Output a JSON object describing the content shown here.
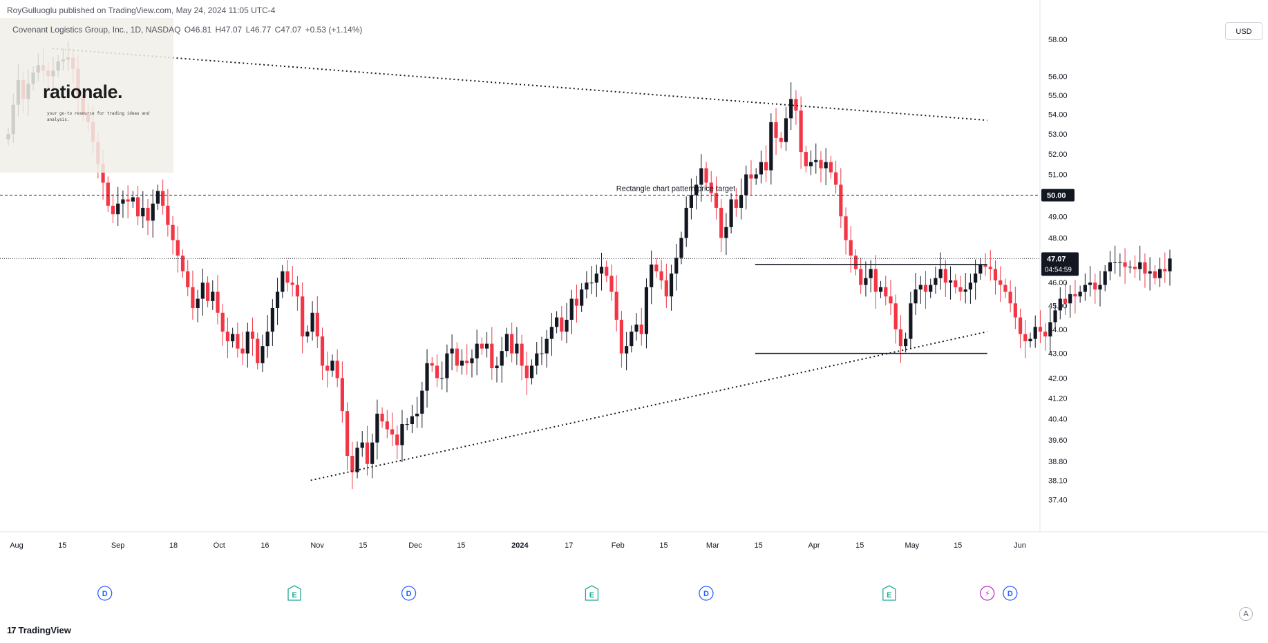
{
  "header": {
    "publisher": "RoyGulluoglu published on TradingView.com, May 24, 2024 11:05 UTC-4",
    "symbol": "Covenant Logistics Group, Inc., 1D, NASDAQ",
    "open": "O46.81",
    "high": "H47.07",
    "low": "L46.77",
    "close": "C47.07",
    "change": "+0.53 (+1.14%)"
  },
  "watermark": {
    "title": "rationale.",
    "tagline": "your go-to resource for trading ideas and analysis."
  },
  "currency_label": "USD",
  "price_badge": {
    "price": "47.07",
    "countdown": "04:54:59"
  },
  "target_badge": "50.00",
  "footer": {
    "brand": "TradingView",
    "settings_icon": "settings-icon"
  },
  "colors": {
    "up": "#131722",
    "down": "#f23645",
    "grid": "#f0f3fa"
  },
  "chart_data": {
    "type": "candlestick",
    "yscale": "log",
    "ylim": [
      37.0,
      59.2
    ],
    "y_ticks": [
      58.0,
      56.0,
      55.0,
      54.0,
      53.0,
      52.0,
      51.0,
      50.0,
      49.0,
      48.0,
      47.0,
      46.0,
      45.0,
      44.0,
      43.0,
      42.0,
      41.2,
      40.4,
      39.6,
      38.8,
      38.1,
      37.4
    ],
    "x_ticks": [
      {
        "label": "Aug",
        "date": "2023-08-01"
      },
      {
        "label": "15",
        "date": "2023-08-15"
      },
      {
        "label": "Sep",
        "date": "2023-09-01"
      },
      {
        "label": "18",
        "date": "2023-09-18"
      },
      {
        "label": "Oct",
        "date": "2023-10-02"
      },
      {
        "label": "16",
        "date": "2023-10-16"
      },
      {
        "label": "Nov",
        "date": "2023-11-01"
      },
      {
        "label": "15",
        "date": "2023-11-15"
      },
      {
        "label": "Dec",
        "date": "2023-12-01"
      },
      {
        "label": "15",
        "date": "2023-12-15"
      },
      {
        "label": "2024",
        "date": "2024-01-02"
      },
      {
        "label": "17",
        "date": "2024-01-17"
      },
      {
        "label": "Feb",
        "date": "2024-02-01"
      },
      {
        "label": "15",
        "date": "2024-02-15"
      },
      {
        "label": "Mar",
        "date": "2024-03-01"
      },
      {
        "label": "15",
        "date": "2024-03-15"
      },
      {
        "label": "Apr",
        "date": "2024-04-01"
      },
      {
        "label": "15",
        "date": "2024-04-15"
      },
      {
        "label": "May",
        "date": "2024-05-01"
      },
      {
        "label": "15",
        "date": "2024-05-15"
      },
      {
        "label": "Jun",
        "date": "2024-06-03"
      }
    ],
    "closes": [
      53.0,
      54.5,
      55.8,
      54.8,
      55.6,
      56.2,
      56.6,
      56.3,
      56.0,
      56.3,
      56.8,
      56.9,
      57.0,
      56.4,
      55.0,
      54.0,
      53.6,
      52.6,
      51.5,
      50.6,
      49.5,
      49.1,
      49.6,
      49.8,
      49.7,
      49.9,
      49.0,
      49.4,
      48.8,
      49.6,
      50.2,
      49.5,
      48.6,
      47.9,
      47.2,
      46.5,
      45.8,
      44.9,
      45.3,
      46.0,
      45.2,
      45.6,
      44.7,
      43.9,
      43.5,
      43.8,
      43.2,
      43.0,
      43.9,
      43.6,
      42.6,
      43.3,
      43.9,
      44.9,
      45.6,
      46.5,
      46.0,
      45.9,
      45.4,
      43.7,
      43.9,
      44.7,
      43.7,
      42.5,
      42.3,
      42.7,
      42.0,
      40.7,
      39.0,
      38.4,
      39.3,
      39.5,
      38.7,
      39.5,
      40.6,
      40.3,
      40.0,
      39.8,
      39.4,
      40.2,
      40.2,
      40.5,
      40.6,
      41.5,
      42.6,
      42.5,
      42.0,
      42.0,
      43.0,
      43.2,
      42.5,
      42.7,
      42.6,
      42.8,
      43.4,
      43.2,
      43.4,
      42.4,
      42.5,
      43.1,
      43.8,
      43.0,
      43.4,
      42.5,
      42.0,
      42.5,
      43.0,
      43.0,
      43.6,
      44.1,
      44.5,
      43.9,
      44.4,
      45.3,
      45.0,
      45.7,
      46.0,
      46.0,
      46.4,
      46.7,
      46.3,
      45.6,
      44.4,
      43.0,
      43.3,
      43.9,
      44.2,
      43.8,
      45.8,
      46.8,
      46.5,
      46.1,
      45.4,
      46.4,
      47.1,
      48.0,
      49.4,
      50.0,
      50.5,
      51.3,
      50.6,
      50.1,
      49.4,
      48.0,
      48.5,
      49.8,
      49.4,
      50.0,
      51.0,
      50.8,
      51.0,
      51.6,
      51.2,
      53.6,
      52.8,
      52.6,
      53.8,
      54.8,
      54.2,
      52.1,
      51.4,
      51.6,
      51.7,
      51.3,
      51.6,
      51.1,
      50.5,
      49.0,
      47.9,
      47.2,
      46.6,
      45.9,
      46.2,
      46.6,
      45.6,
      45.8,
      45.4,
      45.1,
      44.0,
      43.3,
      43.6,
      45.1,
      45.7,
      45.9,
      45.6,
      45.9,
      46.2,
      46.6,
      46.0,
      46.1,
      45.8,
      45.6,
      45.7,
      46.0,
      46.4,
      46.8,
      46.7,
      46.6,
      46.1,
      45.9,
      45.6,
      45.1,
      44.5,
      43.8,
      43.5,
      43.6,
      44.1,
      43.9,
      43.7,
      44.3,
      44.8,
      45.3,
      45.1,
      45.5,
      45.4,
      45.6,
      45.9,
      46.0,
      45.7,
      45.9,
      46.5,
      46.9,
      46.9,
      46.9,
      46.7,
      46.7,
      46.6,
      46.9,
      46.4,
      46.5,
      46.2,
      46.6,
      46.5,
      47.07
    ],
    "annotations": [
      {
        "type": "hline",
        "style": "dashed",
        "price": 50.0,
        "label": "Rectangle chart pattern price target"
      },
      {
        "type": "segment",
        "style": "solid",
        "from": {
          "date": "2024-03-14",
          "price": 46.8
        },
        "to": {
          "date": "2024-05-24",
          "price": 46.8
        }
      },
      {
        "type": "segment",
        "style": "solid",
        "from": {
          "date": "2024-03-14",
          "price": 43.0
        },
        "to": {
          "date": "2024-05-24",
          "price": 43.0
        }
      },
      {
        "type": "trendline",
        "style": "dotted",
        "from": {
          "date": "2023-08-12",
          "price": 57.5
        },
        "to": {
          "date": "2024-05-24",
          "price": 53.7
        }
      },
      {
        "type": "trendline",
        "style": "dotted",
        "from": {
          "date": "2023-10-30",
          "price": 38.1
        },
        "to": {
          "date": "2024-05-24",
          "price": 43.9
        }
      }
    ],
    "events": [
      {
        "label": "D",
        "kind": "dividend",
        "date": "2023-08-28"
      },
      {
        "label": "E",
        "kind": "earnings",
        "date": "2023-10-25"
      },
      {
        "label": "D",
        "kind": "dividend",
        "date": "2023-11-29"
      },
      {
        "label": "E",
        "kind": "earnings",
        "date": "2024-01-24"
      },
      {
        "label": "D",
        "kind": "dividend",
        "date": "2024-02-28"
      },
      {
        "label": "E",
        "kind": "earnings",
        "date": "2024-04-24"
      },
      {
        "label": "⚡",
        "kind": "news",
        "date": "2024-05-24"
      },
      {
        "label": "D",
        "kind": "dividend",
        "date": "2024-05-31"
      }
    ]
  }
}
